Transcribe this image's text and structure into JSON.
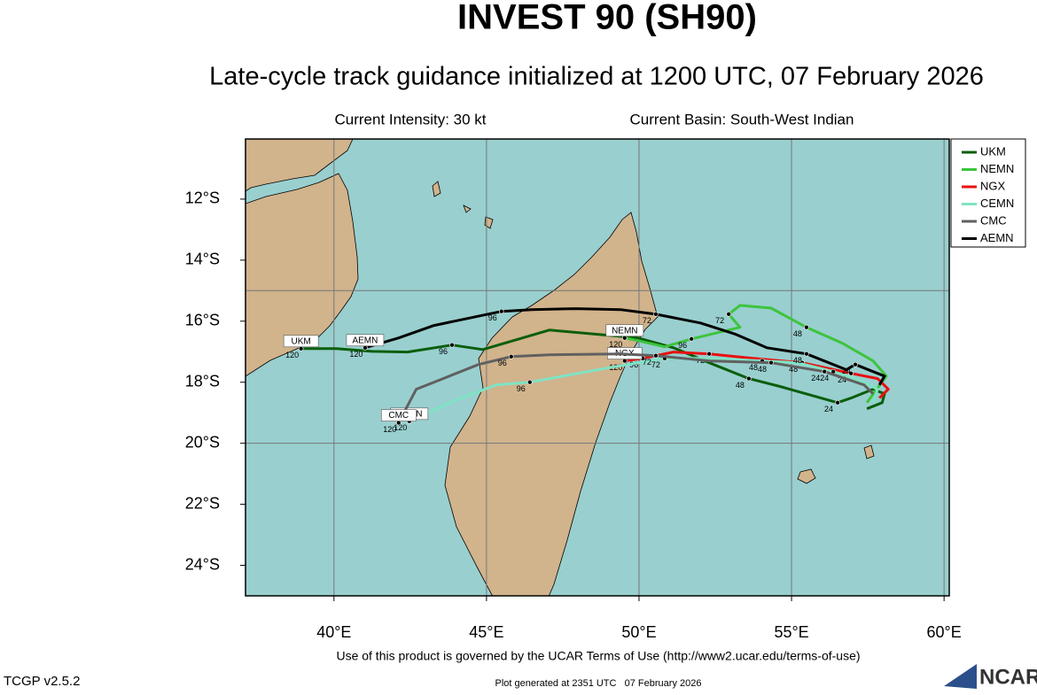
{
  "title": "INVEST 90 (SH90)",
  "subtitle": "Late-cycle track guidance initialized at 1200 UTC, 07 February 2026",
  "info": {
    "intensity": "Current Intensity: 30 kt",
    "basin": "Current Basin: South-West Indian"
  },
  "map": {
    "xlim": [
      37.1,
      60.17
    ],
    "ylim": [
      -25,
      -10.03
    ],
    "xticks": [
      {
        "value": 40,
        "label": "40°E"
      },
      {
        "value": 45,
        "label": "45°E"
      },
      {
        "value": 50,
        "label": "50°E"
      },
      {
        "value": 55,
        "label": "55°E"
      },
      {
        "value": 60,
        "label": "60°E"
      }
    ],
    "yticks": [
      {
        "value": -12,
        "label": "12°S"
      },
      {
        "value": -14,
        "label": "14°S"
      },
      {
        "value": -16,
        "label": "16°S"
      },
      {
        "value": -18,
        "label": "18°S"
      },
      {
        "value": -20,
        "label": "20°S"
      },
      {
        "value": -22,
        "label": "22°S"
      },
      {
        "value": -24,
        "label": "24°S"
      }
    ],
    "grid_lat": [
      -15,
      -20
    ],
    "tracks": [
      {
        "name": "UKM",
        "color": "#0b5e0b",
        "lon": [
          57.47,
          57.97,
          58.05,
          57.67,
          56.95,
          56.51,
          54.62,
          53.6,
          52.3,
          51.13,
          49.97,
          47.06,
          44.88,
          43.87,
          42.41,
          41.25,
          40.09,
          38.92
        ],
        "lat": [
          -18.87,
          -18.67,
          -18.38,
          -18.23,
          -18.52,
          -18.67,
          -18.14,
          -17.88,
          -17.36,
          -16.87,
          -16.55,
          -16.29,
          -16.93,
          -16.78,
          -17.01,
          -16.99,
          -16.9,
          -16.9
        ],
        "hours": [
          null,
          null,
          null,
          null,
          null,
          24,
          null,
          48,
          null,
          null,
          null,
          null,
          null,
          96,
          null,
          null,
          null,
          120
        ]
      },
      {
        "name": "NEMN",
        "color": "#3dc43d",
        "lon": [
          57.47,
          58.11,
          57.67,
          56.66,
          55.49,
          54.33,
          53.31,
          52.94,
          53.31,
          51.72,
          50.84,
          49.97,
          49.53
        ],
        "lat": [
          -18.67,
          -17.8,
          -17.3,
          -16.72,
          -16.2,
          -15.57,
          -15.48,
          -15.77,
          -16.2,
          -16.58,
          -16.84,
          -16.64,
          -16.55
        ],
        "hours": [
          null,
          null,
          null,
          null,
          48,
          null,
          null,
          72,
          null,
          96,
          null,
          null,
          120
        ]
      },
      {
        "name": "NGX",
        "color": "#e81010",
        "lon": [
          57.88,
          58.17,
          57.82,
          56.95,
          55.35,
          53.75,
          52.3,
          51.13,
          50.12,
          49.53
        ],
        "lat": [
          -18.52,
          -18.23,
          -17.88,
          -17.71,
          -17.36,
          -17.22,
          -17.07,
          -17.01,
          -17.22,
          -17.3
        ],
        "hours": [
          null,
          null,
          null,
          24,
          48,
          null,
          72,
          null,
          96,
          120
        ]
      },
      {
        "name": "CEMN",
        "color": "#7fe3c4",
        "lon": [
          57.67,
          57.82,
          57.24,
          56.37,
          55.2,
          54.04,
          52.3,
          50.84,
          49.1,
          46.42,
          45.32,
          44.01,
          42.99,
          42.47
        ],
        "lat": [
          -18.67,
          -18.23,
          -17.94,
          -17.65,
          -17.36,
          -17.3,
          -17.22,
          -17.22,
          -17.51,
          -18.0,
          -18.09,
          -18.58,
          -19.04,
          -19.28
        ],
        "hours": [
          null,
          null,
          null,
          24,
          null,
          48,
          null,
          72,
          null,
          96,
          null,
          null,
          null,
          120
        ]
      },
      {
        "name": "CMC",
        "color": "#606060",
        "lon": [
          57.67,
          57.38,
          56.08,
          54.33,
          52.3,
          50.55,
          49.39,
          47.06,
          45.81,
          44.74,
          43.58,
          42.7,
          42.27,
          42.12
        ],
        "lat": [
          -18.38,
          -18.09,
          -17.65,
          -17.36,
          -17.3,
          -17.13,
          -17.07,
          -17.1,
          -17.16,
          -17.42,
          -17.88,
          -18.23,
          -19.04,
          -19.33
        ],
        "hours": [
          null,
          null,
          24,
          48,
          null,
          72,
          null,
          null,
          96,
          null,
          null,
          null,
          null,
          120
        ]
      },
      {
        "name": "AEMN",
        "color": "#000000",
        "lon": [
          57.88,
          58.05,
          57.67,
          57.09,
          56.8,
          55.49,
          54.19,
          53.17,
          52.01,
          50.55,
          49.39,
          47.94,
          46.48,
          45.49,
          43.28,
          42.12,
          41.02
        ],
        "lat": [
          -18.09,
          -17.8,
          -17.65,
          -17.42,
          -17.59,
          -17.07,
          -16.87,
          -16.43,
          -16.06,
          -15.77,
          -15.62,
          -15.59,
          -15.62,
          -15.68,
          -16.14,
          -16.55,
          -16.87
        ],
        "hours": [
          null,
          null,
          null,
          24,
          null,
          48,
          null,
          null,
          null,
          72,
          null,
          null,
          null,
          96,
          null,
          null,
          120
        ]
      }
    ]
  },
  "footer": {
    "terms": "Use of this product is governed by the UCAR Terms of Use (http://www2.ucar.edu/terms-of-use)",
    "version": "TCGP v2.5.2",
    "generated": "Plot generated at 2351 UTC   07 February 2026",
    "logo": "NCAR"
  }
}
